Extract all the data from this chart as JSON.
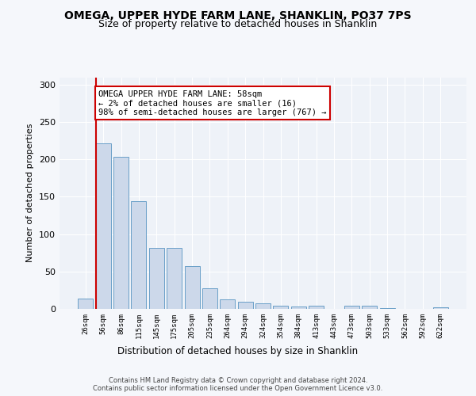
{
  "title_line1": "OMEGA, UPPER HYDE FARM LANE, SHANKLIN, PO37 7PS",
  "title_line2": "Size of property relative to detached houses in Shanklin",
  "xlabel": "Distribution of detached houses by size in Shanklin",
  "ylabel": "Number of detached properties",
  "bar_color": "#ccd8ea",
  "bar_edge_color": "#6a9fc8",
  "categories": [
    "26sqm",
    "56sqm",
    "86sqm",
    "115sqm",
    "145sqm",
    "175sqm",
    "205sqm",
    "235sqm",
    "264sqm",
    "294sqm",
    "324sqm",
    "354sqm",
    "384sqm",
    "413sqm",
    "443sqm",
    "473sqm",
    "503sqm",
    "533sqm",
    "562sqm",
    "592sqm",
    "622sqm"
  ],
  "values": [
    14,
    222,
    203,
    144,
    82,
    82,
    57,
    28,
    13,
    10,
    7,
    4,
    3,
    4,
    0,
    4,
    4,
    1,
    0,
    0,
    2
  ],
  "vline_x_index": 1,
  "vline_color": "#cc0000",
  "annotation_text": "OMEGA UPPER HYDE FARM LANE: 58sqm\n← 2% of detached houses are smaller (16)\n98% of semi-detached houses are larger (767) →",
  "annotation_box_color": "#ffffff",
  "annotation_box_edge": "#cc0000",
  "ylim": [
    0,
    310
  ],
  "yticks": [
    0,
    50,
    100,
    150,
    200,
    250,
    300
  ],
  "background_color": "#eef2f8",
  "fig_background_color": "#f5f7fb",
  "footer_text": "Contains HM Land Registry data © Crown copyright and database right 2024.\nContains public sector information licensed under the Open Government Licence v3.0.",
  "grid_color": "#ffffff",
  "title_fontsize": 10,
  "subtitle_fontsize": 9,
  "bar_width": 0.85,
  "ann_fontsize": 7.5
}
